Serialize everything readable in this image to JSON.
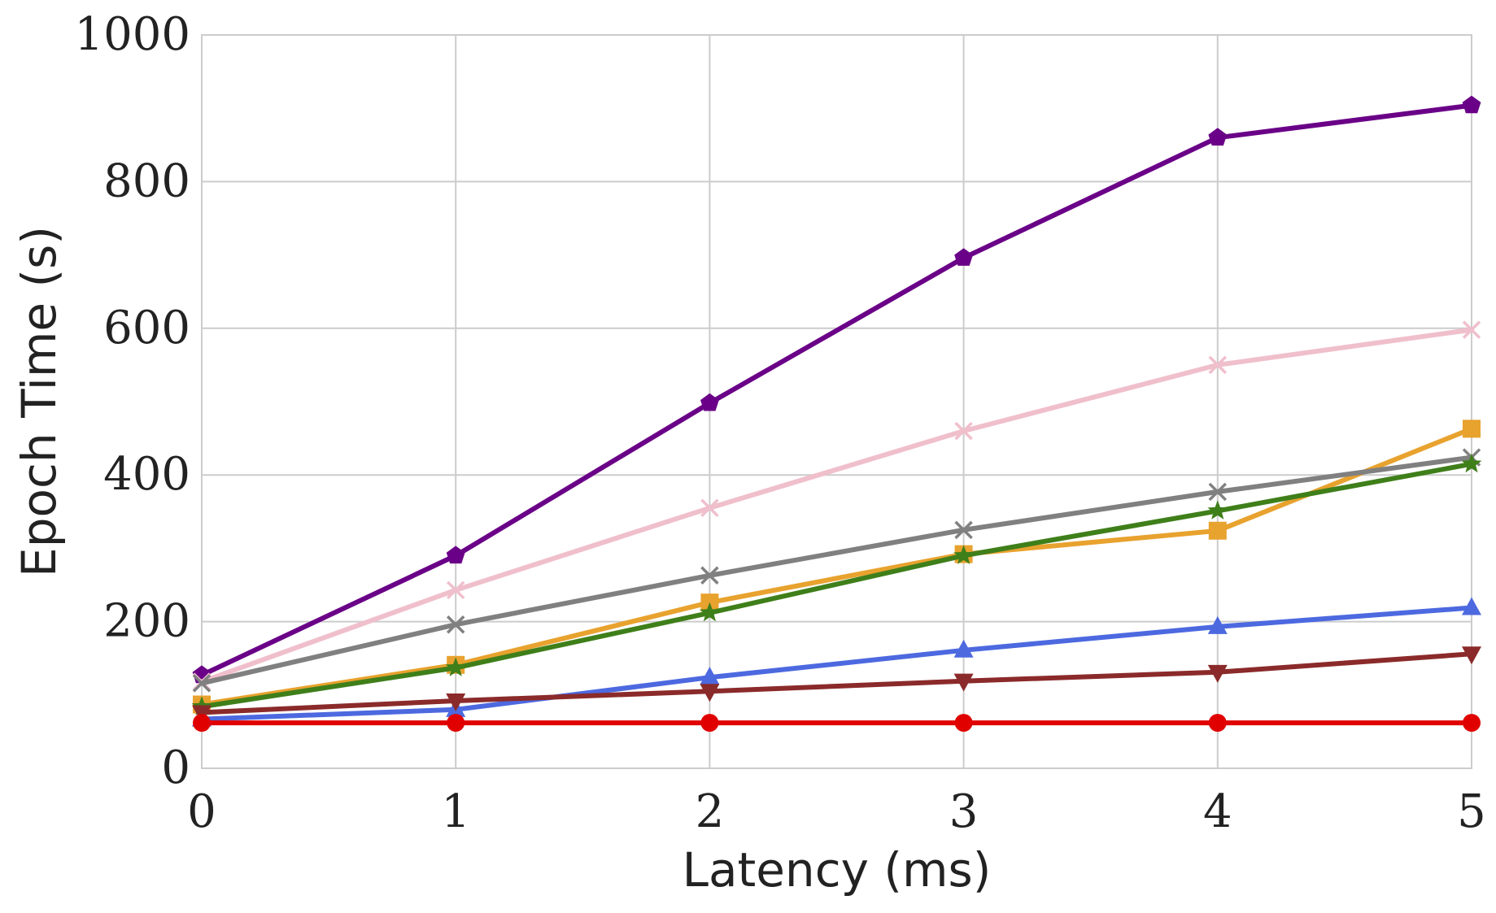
{
  "chart_data": {
    "type": "line",
    "title": "",
    "xlabel": "Latency (ms)",
    "ylabel": "Epoch Time (s)",
    "xlim": [
      0,
      5
    ],
    "ylim": [
      0,
      1000
    ],
    "xticks": [
      "0",
      "1",
      "2",
      "3",
      "4",
      "5"
    ],
    "yticks": [
      "0",
      "200",
      "400",
      "600",
      "800",
      "1000"
    ],
    "grid": true,
    "x": [
      0,
      1,
      2,
      3,
      4,
      5
    ],
    "series": [
      {
        "color": "#6a0087",
        "marker": "pentagon",
        "values": [
          127,
          290,
          498,
          696,
          860,
          904
        ]
      },
      {
        "color": "#f0bfcc",
        "marker": "x",
        "values": [
          118,
          243,
          355,
          460,
          550,
          598
        ]
      },
      {
        "color": "#e8a22e",
        "marker": "square",
        "values": [
          87,
          141,
          226,
          292,
          324,
          463
        ]
      },
      {
        "color": "#808080",
        "marker": "x",
        "values": [
          116,
          196,
          263,
          325,
          377,
          424
        ]
      },
      {
        "color": "#3f7f1a",
        "marker": "star",
        "values": [
          84,
          137,
          212,
          290,
          351,
          415
        ]
      },
      {
        "color": "#4d69e0",
        "marker": "triangle-up",
        "values": [
          67,
          80,
          124,
          161,
          193,
          219
        ]
      },
      {
        "color": "#8b2a2a",
        "marker": "triangle-down",
        "values": [
          76,
          92,
          105,
          119,
          131,
          156
        ]
      },
      {
        "color": "#e00000",
        "marker": "circle",
        "values": [
          62,
          62,
          62,
          62,
          62,
          62
        ]
      }
    ]
  }
}
